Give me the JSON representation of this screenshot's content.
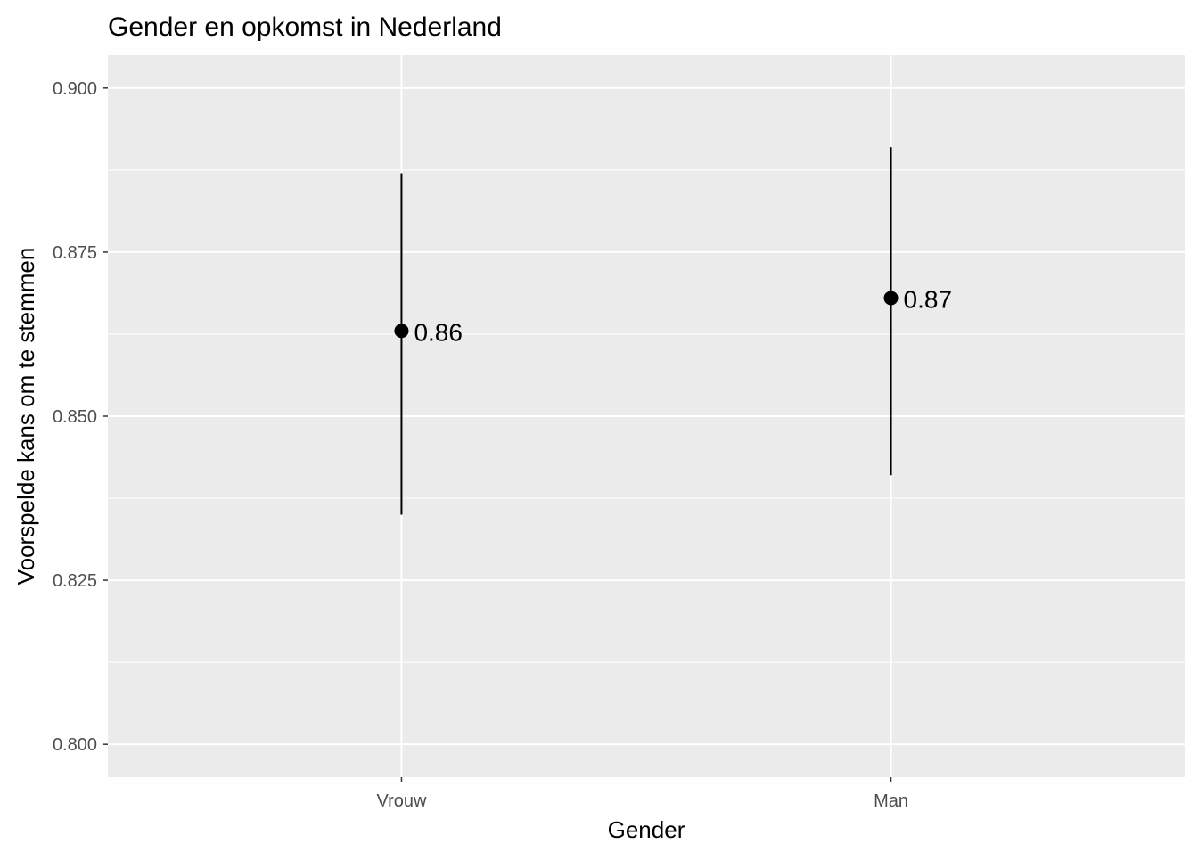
{
  "chart_data": {
    "type": "scatter",
    "title": "Gender en opkomst in Nederland",
    "xlabel": "Gender",
    "ylabel": "Voorspelde kans om te stemmen",
    "categories": [
      "Vrouw",
      "Man"
    ],
    "points": [
      {
        "category": "Vrouw",
        "value": 0.863,
        "lower": 0.835,
        "upper": 0.887,
        "label": "0.86"
      },
      {
        "category": "Man",
        "value": 0.868,
        "lower": 0.841,
        "upper": 0.891,
        "label": "0.87"
      }
    ],
    "ylim": [
      0.795,
      0.905
    ],
    "y_ticks": [
      {
        "value": 0.8,
        "label": "0.800"
      },
      {
        "value": 0.825,
        "label": "0.825"
      },
      {
        "value": 0.85,
        "label": "0.850"
      },
      {
        "value": 0.875,
        "label": "0.875"
      },
      {
        "value": 0.9,
        "label": "0.900"
      }
    ],
    "y_minor_ticks": [
      0.8125,
      0.8375,
      0.8625,
      0.8875
    ],
    "grid": true,
    "legend": "none",
    "colors": {
      "panel_background": "#EBEBEB",
      "grid": "#FFFFFF",
      "marks": "#000000",
      "axis_text": "#4D4D4D",
      "title_text": "#000000"
    }
  }
}
